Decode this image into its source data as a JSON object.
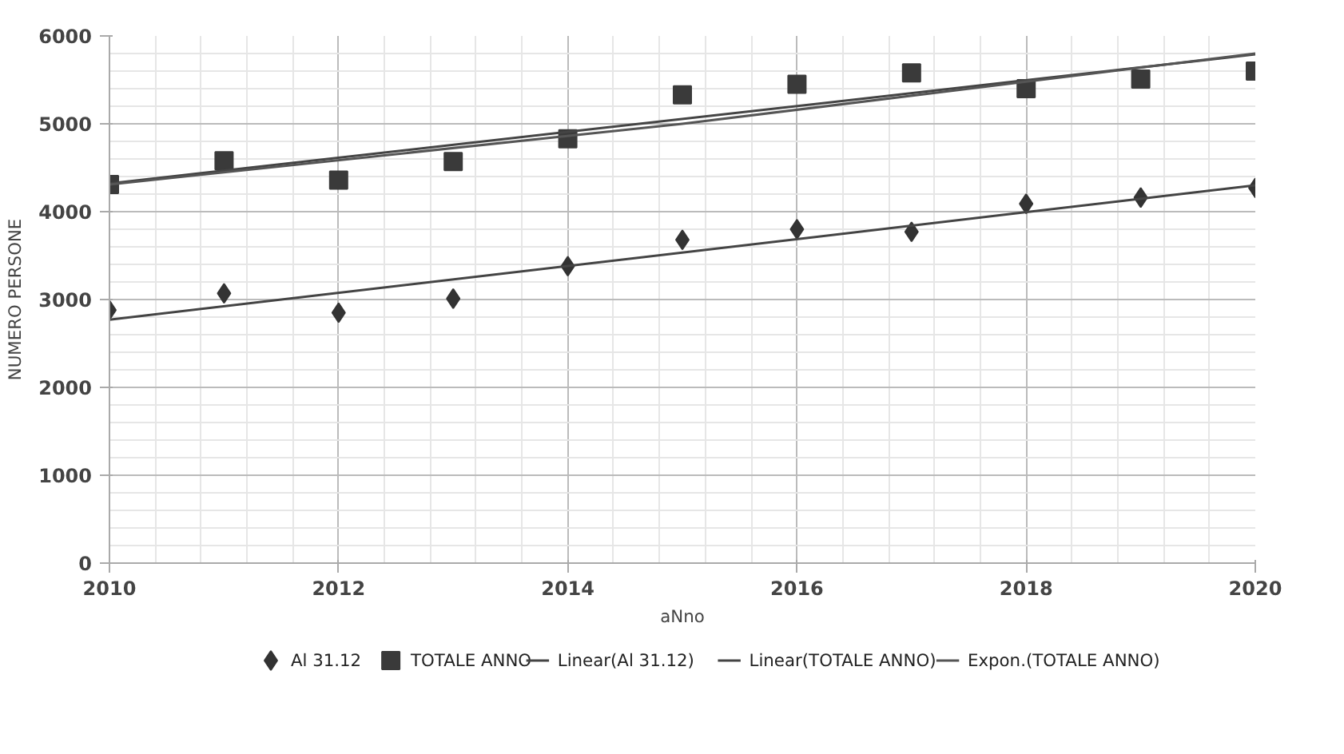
{
  "chart_data": {
    "type": "scatter",
    "xlabel": "aNno",
    "ylabel": "NUMERO PERSONE",
    "x": [
      2010,
      2011,
      2012,
      2013,
      2014,
      2015,
      2016,
      2017,
      2018,
      2019,
      2020
    ],
    "series": [
      {
        "name": "Al 31.12",
        "marker": "diamond",
        "color": "#333333",
        "values": [
          2880,
          3070,
          2850,
          3010,
          3380,
          3680,
          3800,
          3770,
          4090,
          4160,
          4270
        ]
      },
      {
        "name": "TOTALE ANNO",
        "marker": "square",
        "color": "#3a3a3a",
        "values": [
          4310,
          4580,
          4360,
          4570,
          4830,
          5330,
          5450,
          5580,
          5400,
          5510,
          5600
        ]
      },
      {
        "name": "Linear(Al 31.12)",
        "type": "line",
        "color": "#444444",
        "x": [
          2010,
          2020
        ],
        "values": [
          2770,
          4300
        ]
      },
      {
        "name": "Linear(TOTALE ANNO)",
        "type": "line",
        "color": "#444444",
        "x": [
          2010,
          2020
        ],
        "values": [
          4320,
          5790
        ]
      },
      {
        "name": "Expon.(TOTALE ANNO)",
        "type": "line",
        "color": "#555555",
        "x": [
          2010,
          2015,
          2020
        ],
        "values": [
          4310,
          5000,
          5800
        ]
      }
    ],
    "xlim": [
      2010,
      2020
    ],
    "xticks": [
      2010,
      2012,
      2014,
      2016,
      2018,
      2020
    ],
    "ylim": [
      0,
      6000
    ],
    "yticks": [
      0,
      1000,
      2000,
      3000,
      4000,
      5000,
      6000
    ],
    "grid": true,
    "legend": "bottom"
  }
}
